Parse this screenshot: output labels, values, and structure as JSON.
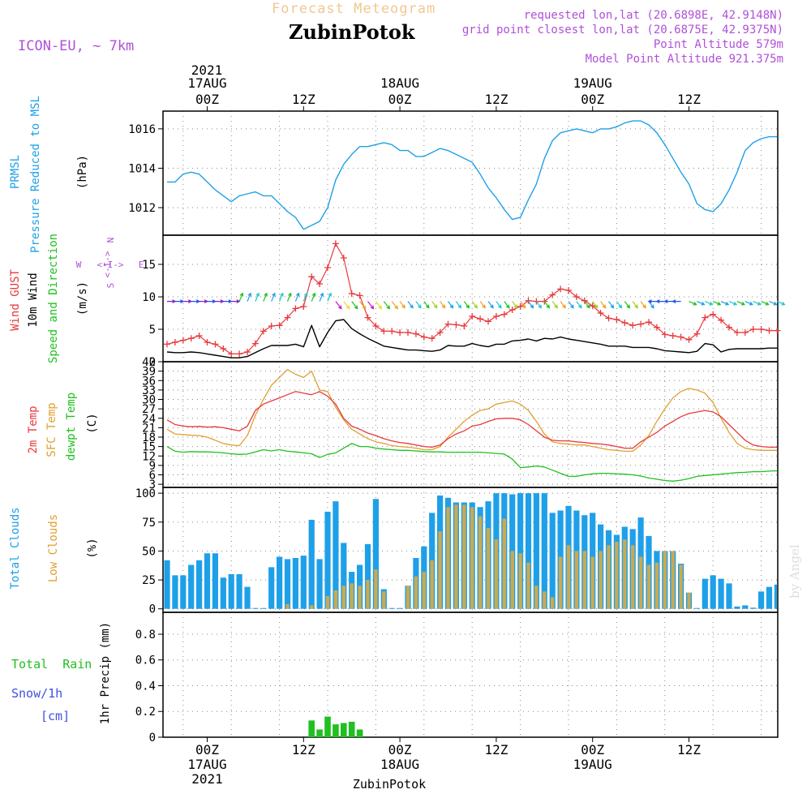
{
  "header": {
    "forecast_label": "Forecast Meteogram",
    "model": "ICON-EU, ~ 7km",
    "location": "ZubinPotok",
    "requested": "requested lon,lat (20.6898E, 42.9148N)",
    "closest": "grid point closest lon,lat (20.6875E, 42.9375N)",
    "point_alt": "Point Altitude 579m",
    "model_alt": "Model Point Altitude 921.375m",
    "watermark": "by Angel",
    "footer_location": "ZubinPotok"
  },
  "colors": {
    "cyan": "#1ea0e8",
    "red": "#e8393d",
    "orange": "#e0a030",
    "green": "#20c020",
    "violet": "#b050d8",
    "blue": "#4050e0",
    "lowcloud": "#c9aa52",
    "tan": "#f0c890"
  },
  "time_axis": {
    "top_year": "2021",
    "top_labels": [
      {
        "t": 0,
        "line1": "17AUG",
        "line2": "00Z"
      },
      {
        "t": 12,
        "line1": "",
        "line2": "12Z"
      },
      {
        "t": 24,
        "line1": "18AUG",
        "line2": "00Z"
      },
      {
        "t": 36,
        "line1": "",
        "line2": "12Z"
      },
      {
        "t": 48,
        "line1": "19AUG",
        "line2": "00Z"
      },
      {
        "t": 60,
        "line1": "",
        "line2": "12Z"
      }
    ],
    "bottom_labels": [
      {
        "t": 0,
        "line1": "00Z",
        "line2": "17AUG",
        "line3": "2021"
      },
      {
        "t": 12,
        "line1": "12Z",
        "line2": "",
        "line3": ""
      },
      {
        "t": 24,
        "line1": "00Z",
        "line2": "18AUG",
        "line3": ""
      },
      {
        "t": 36,
        "line1": "12Z",
        "line2": "",
        "line3": ""
      },
      {
        "t": 48,
        "line1": "00Z",
        "line2": "19AUG",
        "line3": ""
      },
      {
        "t": 60,
        "line1": "12Z",
        "line2": "",
        "line3": ""
      }
    ]
  },
  "chart_data": [
    {
      "type": "line",
      "panel": "pressure",
      "labels": {
        "line1": "PRMSL",
        "line2": "Pressure Reduced to MSL",
        "unit": "(hPa)"
      },
      "ylim": [
        1010.6,
        1016.9
      ],
      "yticks": [
        1012,
        1014,
        1016
      ],
      "x": [
        -5,
        -4,
        -3,
        -2,
        -1,
        0,
        1,
        2,
        3,
        4,
        5,
        6,
        7,
        8,
        9,
        10,
        11,
        12,
        13,
        14,
        15,
        16,
        17,
        18,
        19,
        20,
        21,
        22,
        23,
        24,
        25,
        26,
        27,
        28,
        29,
        30,
        31,
        32,
        33,
        34,
        35,
        36,
        37,
        38,
        39,
        40,
        41,
        42,
        43,
        44,
        45,
        46,
        47,
        48,
        49,
        50,
        51,
        52,
        53,
        54,
        55,
        56,
        57,
        58,
        59,
        60,
        61,
        62,
        63,
        64,
        65,
        66,
        67,
        68,
        69,
        70,
        71
      ],
      "series": [
        {
          "name": "PRMSL",
          "values": [
            1013.3,
            1013.3,
            1013.7,
            1013.8,
            1013.7,
            1013.3,
            1012.9,
            1012.6,
            1012.3,
            1012.6,
            1012.7,
            1012.8,
            1012.6,
            1012.6,
            1012.2,
            1011.8,
            1011.5,
            1010.9,
            1011.1,
            1011.3,
            1012.0,
            1013.4,
            1014.2,
            1014.7,
            1015.1,
            1015.1,
            1015.2,
            1015.3,
            1015.2,
            1014.9,
            1014.9,
            1014.6,
            1014.6,
            1014.8,
            1015.0,
            1014.9,
            1014.7,
            1014.5,
            1014.3,
            1013.7,
            1013.0,
            1012.5,
            1011.9,
            1011.4,
            1011.5,
            1012.4,
            1013.2,
            1014.5,
            1015.4,
            1015.8,
            1015.9,
            1016.0,
            1015.9,
            1015.8,
            1016.0,
            1016.0,
            1016.1,
            1016.3,
            1016.4,
            1016.4,
            1016.2,
            1015.8,
            1015.2,
            1014.5,
            1013.8,
            1013.2,
            1012.2,
            1011.9,
            1011.8,
            1012.2,
            1012.9,
            1013.8,
            1014.9,
            1015.3,
            1015.5,
            1015.6,
            1015.6
          ]
        }
      ]
    },
    {
      "type": "line",
      "panel": "wind",
      "labels": {
        "gust": "Wind GUST",
        "wind10": "10m Wind",
        "speeddir": "Speed and Direction",
        "unit": "(m/s)"
      },
      "compass": {
        "n": "N",
        "e": "E",
        "s": "S",
        "w": "W",
        "arrows": "<-I->"
      },
      "ylim": [
        0,
        19.5
      ],
      "yticks": [
        0,
        5,
        10,
        15
      ],
      "x": [
        -5,
        -4,
        -3,
        -2,
        -1,
        0,
        1,
        2,
        3,
        4,
        5,
        6,
        7,
        8,
        9,
        10,
        11,
        12,
        13,
        14,
        15,
        16,
        17,
        18,
        19,
        20,
        21,
        22,
        23,
        24,
        25,
        26,
        27,
        28,
        29,
        30,
        31,
        32,
        33,
        34,
        35,
        36,
        37,
        38,
        39,
        40,
        41,
        42,
        43,
        44,
        45,
        46,
        47,
        48,
        49,
        50,
        51,
        52,
        53,
        54,
        55,
        56,
        57,
        58,
        59,
        60,
        61,
        62,
        63,
        64,
        65,
        66,
        67,
        68,
        69,
        70,
        71
      ],
      "series": [
        {
          "name": "Wind GUST",
          "values": [
            2.7,
            3.0,
            3.3,
            3.6,
            4.0,
            3.0,
            2.7,
            2.0,
            1.2,
            1.2,
            1.5,
            2.8,
            4.7,
            5.5,
            5.6,
            6.8,
            8.2,
            8.5,
            13.1,
            12.0,
            14.5,
            18.2,
            16.0,
            10.5,
            10.2,
            6.8,
            5.5,
            4.7,
            4.7,
            4.5,
            4.5,
            4.3,
            3.8,
            3.6,
            4.5,
            5.8,
            5.7,
            5.5,
            7.0,
            6.6,
            6.2,
            7.0,
            7.3,
            8.0,
            8.5,
            9.4,
            9.3,
            9.3,
            10.3,
            11.2,
            11.0,
            10.0,
            9.4,
            8.6,
            7.5,
            6.7,
            6.5,
            6.0,
            5.6,
            5.8,
            6.1,
            5.3,
            4.2,
            4.0,
            3.8,
            3.4,
            4.3,
            6.8,
            7.3,
            6.4,
            5.3,
            4.5,
            4.5,
            5.0,
            5.0,
            4.8,
            4.8
          ]
        },
        {
          "name": "10m Wind",
          "values": [
            1.5,
            1.4,
            1.4,
            1.5,
            1.4,
            1.2,
            1.0,
            0.8,
            0.6,
            0.6,
            0.8,
            1.4,
            2.0,
            2.5,
            2.5,
            2.5,
            2.7,
            2.3,
            5.6,
            2.3,
            4.5,
            6.3,
            6.5,
            5.1,
            4.3,
            3.6,
            3.0,
            2.4,
            2.2,
            2.0,
            1.8,
            1.8,
            1.7,
            1.6,
            1.8,
            2.5,
            2.4,
            2.4,
            2.8,
            2.5,
            2.3,
            2.7,
            2.7,
            3.2,
            3.3,
            3.5,
            3.2,
            3.6,
            3.5,
            3.8,
            3.5,
            3.3,
            3.1,
            2.9,
            2.7,
            2.4,
            2.4,
            2.4,
            2.2,
            2.2,
            2.2,
            2.0,
            1.7,
            1.6,
            1.5,
            1.4,
            1.6,
            2.8,
            2.6,
            1.5,
            1.9,
            2.0,
            2.0,
            2.0,
            2.0,
            2.1,
            2.1
          ]
        }
      ]
    },
    {
      "type": "line",
      "panel": "temperature",
      "labels": {
        "t2m": "2m Temp",
        "sfc": "SFC Temp",
        "dew": "dewpt Temp",
        "unit": "(C)"
      },
      "ylim": [
        2,
        42
      ],
      "yticks": [
        3,
        6,
        9,
        12,
        15,
        18,
        21,
        24,
        27,
        30,
        33,
        36,
        39,
        42
      ],
      "x": [
        -5,
        -4,
        -3,
        -2,
        -1,
        0,
        1,
        2,
        3,
        4,
        5,
        6,
        7,
        8,
        9,
        10,
        11,
        12,
        13,
        14,
        15,
        16,
        17,
        18,
        19,
        20,
        21,
        22,
        23,
        24,
        25,
        26,
        27,
        28,
        29,
        30,
        31,
        32,
        33,
        34,
        35,
        36,
        37,
        38,
        39,
        40,
        41,
        42,
        43,
        44,
        45,
        46,
        47,
        48,
        49,
        50,
        51,
        52,
        53,
        54,
        55,
        56,
        57,
        58,
        59,
        60,
        61,
        62,
        63,
        64,
        65,
        66,
        67,
        68,
        69,
        70,
        71
      ],
      "series": [
        {
          "name": "2m Temp",
          "values": [
            23.5,
            22.0,
            21.5,
            21.3,
            21.4,
            21.2,
            21.3,
            21.0,
            20.5,
            20.0,
            21.5,
            26.5,
            28.5,
            29.5,
            30.5,
            31.5,
            32.5,
            32.0,
            31.5,
            32.5,
            31.0,
            28.5,
            24.0,
            21.5,
            20.5,
            19.3,
            18.5,
            17.5,
            16.8,
            16.3,
            16.0,
            15.5,
            15.0,
            14.8,
            15.5,
            17.5,
            19.0,
            20.0,
            21.5,
            22.0,
            23.0,
            23.8,
            24.0,
            24.0,
            23.5,
            22.0,
            20.0,
            18.0,
            17.0,
            16.8,
            16.8,
            16.5,
            16.3,
            16.0,
            15.8,
            15.5,
            15.0,
            14.5,
            14.5,
            16.5,
            18.0,
            19.5,
            21.5,
            23.0,
            24.5,
            25.5,
            26.0,
            26.5,
            26.0,
            24.5,
            22.0,
            19.5,
            17.0,
            15.5,
            15.0,
            14.8,
            14.8
          ]
        },
        {
          "name": "SFC Temp",
          "values": [
            20.5,
            19.0,
            18.8,
            18.6,
            18.5,
            18.0,
            17.0,
            16.0,
            15.5,
            15.3,
            18.5,
            25.0,
            30.0,
            34.5,
            37.0,
            39.5,
            38.0,
            37.0,
            39.0,
            33.0,
            32.5,
            27.5,
            23.5,
            20.5,
            19.0,
            17.5,
            16.5,
            16.0,
            15.3,
            15.0,
            14.8,
            14.5,
            14.0,
            14.0,
            15.0,
            18.0,
            20.5,
            23.0,
            25.0,
            26.5,
            27.0,
            28.5,
            29.0,
            29.5,
            28.5,
            26.5,
            23.0,
            19.0,
            16.5,
            16.0,
            15.8,
            15.5,
            15.5,
            15.0,
            14.5,
            14.0,
            13.8,
            13.5,
            13.5,
            15.5,
            18.5,
            23.0,
            27.0,
            30.5,
            32.5,
            33.5,
            33.0,
            32.0,
            29.0,
            24.0,
            19.5,
            16.0,
            14.5,
            14.0,
            13.8,
            13.8,
            13.8
          ]
        },
        {
          "name": "dewpt Temp",
          "values": [
            15.0,
            13.5,
            13.2,
            13.4,
            13.3,
            13.3,
            13.2,
            13.0,
            12.7,
            12.5,
            12.6,
            13.3,
            14.0,
            13.6,
            14.0,
            13.5,
            13.3,
            13.0,
            12.7,
            11.5,
            12.5,
            13.0,
            14.5,
            16.0,
            15.0,
            15.0,
            14.5,
            14.2,
            14.0,
            13.8,
            13.8,
            13.6,
            13.4,
            13.3,
            13.3,
            13.2,
            13.2,
            13.2,
            13.2,
            13.2,
            13.0,
            12.8,
            12.6,
            11.0,
            8.3,
            8.5,
            8.8,
            8.5,
            7.5,
            6.5,
            5.5,
            5.5,
            6.0,
            6.3,
            6.5,
            6.5,
            6.3,
            6.2,
            6.0,
            5.6,
            5.0,
            4.6,
            4.2,
            4.0,
            4.3,
            4.8,
            5.5,
            5.8,
            6.0,
            6.2,
            6.5,
            6.7,
            6.8,
            7.0,
            7.0,
            7.2,
            7.3
          ]
        }
      ]
    },
    {
      "type": "bar",
      "panel": "clouds",
      "labels": {
        "total": "Total Clouds",
        "low": "Low Clouds",
        "unit": "(%)"
      },
      "ylim": [
        -3,
        105
      ],
      "yticks": [
        0,
        25,
        50,
        75,
        100
      ],
      "x": [
        -5,
        -4,
        -3,
        -2,
        -1,
        0,
        1,
        2,
        3,
        4,
        5,
        6,
        7,
        8,
        9,
        10,
        11,
        12,
        13,
        14,
        15,
        16,
        17,
        18,
        19,
        20,
        21,
        22,
        23,
        24,
        25,
        26,
        27,
        28,
        29,
        30,
        31,
        32,
        33,
        34,
        35,
        36,
        37,
        38,
        39,
        40,
        41,
        42,
        43,
        44,
        45,
        46,
        47,
        48,
        49,
        50,
        51,
        52,
        53,
        54,
        55,
        56,
        57,
        58,
        59,
        60,
        61,
        62,
        63,
        64,
        65,
        66,
        67,
        68,
        69,
        70,
        71
      ],
      "series": [
        {
          "name": "Total Clouds",
          "values": [
            42,
            29,
            29,
            38,
            42,
            48,
            48,
            27,
            30,
            30,
            19,
            0,
            0,
            36,
            45,
            43,
            44,
            46,
            77,
            43,
            84,
            93,
            57,
            32,
            38,
            56,
            95,
            17,
            0,
            0,
            20,
            44,
            54,
            83,
            98,
            96,
            92,
            92,
            92,
            88,
            93,
            100,
            100,
            99,
            100,
            100,
            100,
            100,
            83,
            85,
            89,
            85,
            81,
            83,
            73,
            68,
            64,
            71,
            69,
            79,
            63,
            50,
            50,
            50,
            39,
            14,
            0,
            26,
            29,
            26,
            22,
            2,
            3,
            1,
            15,
            19,
            21
          ]
        },
        {
          "name": "Low Clouds",
          "values": [
            0,
            0,
            0,
            0,
            0,
            0,
            0,
            0,
            0,
            0,
            0,
            0,
            0,
            0,
            0,
            4,
            0,
            0,
            3,
            0,
            11,
            16,
            20,
            22,
            20,
            25,
            34,
            15,
            0,
            0,
            20,
            28,
            32,
            42,
            67,
            88,
            90,
            90,
            88,
            80,
            70,
            60,
            78,
            50,
            48,
            40,
            20,
            15,
            10,
            45,
            55,
            50,
            50,
            45,
            50,
            55,
            58,
            60,
            55,
            45,
            38,
            40,
            50,
            50,
            38,
            14,
            0,
            0,
            0,
            0,
            0,
            0,
            0,
            0,
            0,
            0,
            0
          ]
        }
      ]
    },
    {
      "type": "bar",
      "panel": "precip",
      "labels": {
        "total_rain": "Total  Rain",
        "snow": "Snow/1h",
        "cm": "[cm]",
        "unit": "1hr Precip (mm)"
      },
      "ylim": [
        0,
        0.97
      ],
      "yticks": [
        0,
        0.2,
        0.4,
        0.6,
        0.8
      ],
      "x": [
        13,
        14,
        15,
        16,
        17,
        18,
        19
      ],
      "series": [
        {
          "name": "Total Rain",
          "values": [
            0.13,
            0.06,
            0.16,
            0.1,
            0.11,
            0.12,
            0.06
          ]
        }
      ]
    }
  ]
}
